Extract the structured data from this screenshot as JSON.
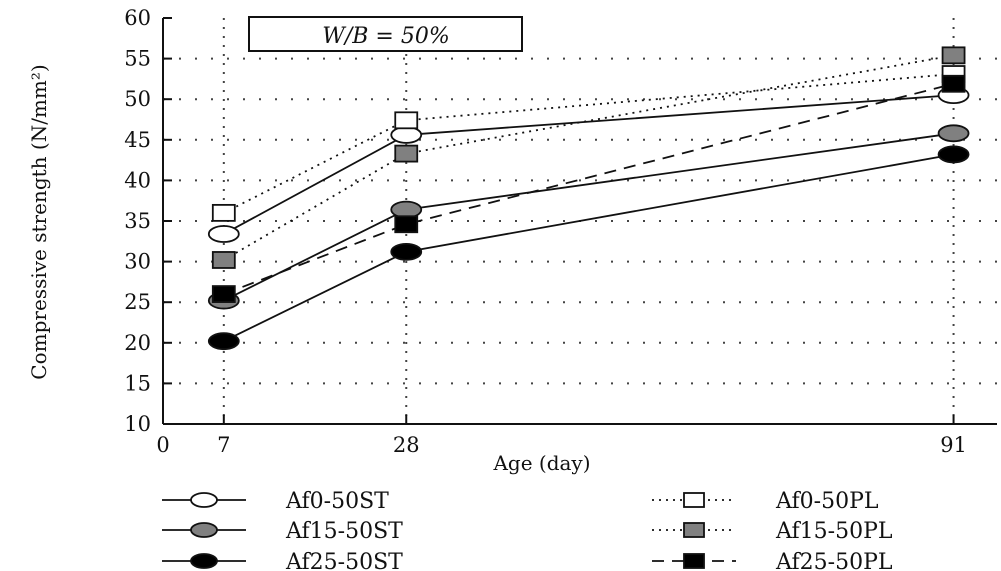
{
  "chart_data": {
    "type": "line",
    "title": "",
    "annotation": "W/B = 50%",
    "xlabel": "Age (day)",
    "ylabel": "Compressive strength (N/mm²)",
    "x": [
      7,
      28,
      91
    ],
    "x_ticks": [
      0,
      7,
      28,
      91
    ],
    "x_tick_labels": [
      "0",
      "7",
      "28",
      "91"
    ],
    "xlim": [
      0,
      96
    ],
    "ylim": [
      10,
      60
    ],
    "y_ticks": [
      10,
      15,
      20,
      25,
      30,
      35,
      40,
      45,
      50,
      55,
      60
    ],
    "y_tick_labels": [
      "10",
      "15",
      "20",
      "25",
      "30",
      "35",
      "40",
      "45",
      "50",
      "55",
      "60"
    ],
    "grid": true,
    "legend_position": "bottom",
    "series": [
      {
        "name": "Af0-50ST",
        "values": [
          33.4,
          45.6,
          50.5
        ],
        "marker": "circle",
        "fill": "#ffffff",
        "line": "solid"
      },
      {
        "name": "Af15-50ST",
        "values": [
          25.2,
          36.4,
          45.8
        ],
        "marker": "circle",
        "fill": "#808080",
        "line": "solid"
      },
      {
        "name": "Af25-50ST",
        "values": [
          20.2,
          31.2,
          43.2
        ],
        "marker": "circle",
        "fill": "#000000",
        "line": "solid"
      },
      {
        "name": "Af0-50PL",
        "values": [
          36.0,
          47.4,
          53.1
        ],
        "marker": "square",
        "fill": "#ffffff",
        "line": "dotted"
      },
      {
        "name": "Af15-50PL",
        "values": [
          30.2,
          43.3,
          55.4
        ],
        "marker": "square",
        "fill": "#808080",
        "line": "dotted"
      },
      {
        "name": "Af25-50PL",
        "values": [
          26.0,
          34.6,
          51.9
        ],
        "marker": "square",
        "fill": "#000000",
        "line": "dashed"
      }
    ]
  }
}
